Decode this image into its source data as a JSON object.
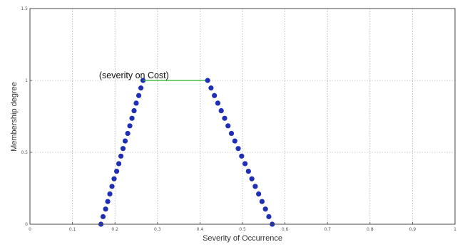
{
  "chart_data": {
    "type": "line",
    "title": "",
    "xlabel": "Severity of Occurrence",
    "ylabel": "Membership degree",
    "xlim": [
      0,
      1
    ],
    "ylim": [
      0,
      1.5
    ],
    "x_ticks": [
      "0",
      "0.1",
      "0.2",
      "0.3",
      "0.4",
      "0.5",
      "0.6",
      "0.7",
      "0.8",
      "0.9",
      "1"
    ],
    "y_ticks": [
      "0",
      "0.5",
      "1",
      "1.5"
    ],
    "x_tick_values": [
      0,
      0.1,
      0.2,
      0.3,
      0.4,
      0.5,
      0.6,
      0.7,
      0.8,
      0.9,
      1
    ],
    "y_tick_values": [
      0,
      0.5,
      1,
      1.5
    ],
    "grid": true,
    "annotation": {
      "text": "(severity on Cost)",
      "x": 0.28,
      "y": 1.0
    },
    "series": [
      {
        "color": "#1f2fb5",
        "marker": "circle",
        "x": [
          0.167,
          0.172,
          0.178,
          0.183,
          0.188,
          0.193,
          0.198,
          0.204,
          0.209,
          0.214,
          0.219,
          0.224,
          0.23,
          0.235,
          0.24,
          0.245,
          0.25,
          0.256,
          0.261,
          0.266
        ],
        "y": [
          0.0,
          0.0526,
          0.1053,
          0.1579,
          0.2105,
          0.2632,
          0.3158,
          0.3684,
          0.4211,
          0.4737,
          0.5263,
          0.5789,
          0.6316,
          0.6842,
          0.7368,
          0.7895,
          0.8421,
          0.8947,
          0.9474,
          1.0
        ]
      },
      {
        "color": "#22b022",
        "marker": "none",
        "x": [
          0.266,
          0.418
        ],
        "y": [
          1.0,
          1.0
        ]
      },
      {
        "color": "#1f2fb5",
        "marker": "circle",
        "x": [
          0.418,
          0.426,
          0.434,
          0.442,
          0.45,
          0.458,
          0.466,
          0.474,
          0.482,
          0.49,
          0.498,
          0.506,
          0.514,
          0.522,
          0.53,
          0.538,
          0.546,
          0.554,
          0.562,
          0.57
        ],
        "y": [
          1.0,
          0.9474,
          0.8947,
          0.8421,
          0.7895,
          0.7368,
          0.6842,
          0.6316,
          0.5789,
          0.5263,
          0.4737,
          0.4211,
          0.3684,
          0.3158,
          0.2632,
          0.2105,
          0.1579,
          0.1053,
          0.0526,
          0.0
        ]
      }
    ]
  }
}
